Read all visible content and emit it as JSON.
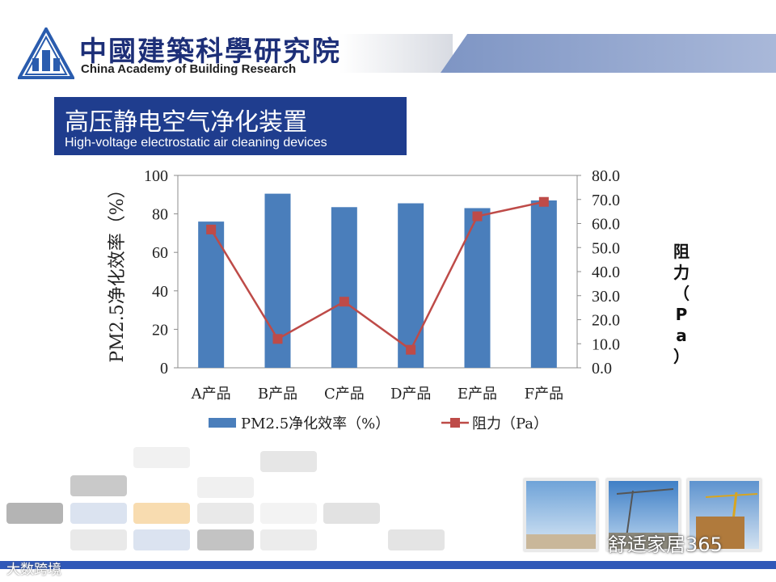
{
  "header": {
    "org_cn": "中國建築科學研究院",
    "org_en": "China Academy of Building Research"
  },
  "slide": {
    "title_cn": "高压静电空气净化装置",
    "title_en": "High-voltage electrostatic air cleaning devices"
  },
  "chart_data": {
    "type": "bar",
    "categories": [
      "A产品",
      "B产品",
      "C产品",
      "D产品",
      "E产品",
      "F产品"
    ],
    "series": [
      {
        "name": "PM2.5净化效率（%）",
        "type": "bar",
        "axis": "left",
        "values": [
          76,
          90.5,
          83.5,
          85.5,
          83,
          87
        ]
      },
      {
        "name": "阻力（Pa）",
        "type": "line",
        "axis": "right",
        "values": [
          57.5,
          12,
          27.5,
          7.5,
          63,
          69
        ]
      }
    ],
    "ylabel_left": "PM2.5净化效率（%）",
    "ylabel_right": "阻力（Pa）",
    "ylim_left": [
      0,
      100
    ],
    "yticks_left": [
      "0",
      "20",
      "40",
      "60",
      "80",
      "100"
    ],
    "ylim_right": [
      0,
      80
    ],
    "yticks_right": [
      "0.0",
      "10.0",
      "20.0",
      "30.0",
      "40.0",
      "50.0",
      "60.0",
      "70.0",
      "80.0"
    ],
    "grid": false,
    "legend": "bottom",
    "colors": {
      "bar": "#4a7ebb",
      "line": "#be4b48"
    }
  },
  "watermarks": {
    "right": "舒适家居365",
    "left": "大数跨境"
  }
}
